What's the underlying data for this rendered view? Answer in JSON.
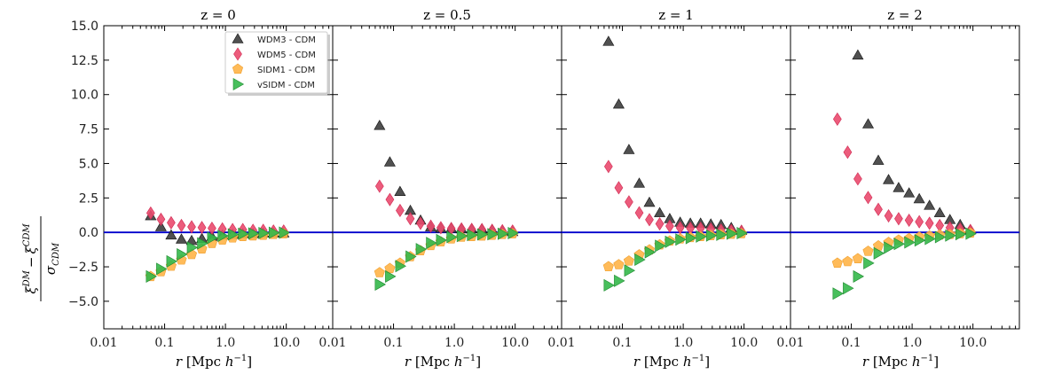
{
  "chart_data": [
    {
      "type": "scatter",
      "title": "z = 0",
      "xlabel": "r [Mpc h^-1]",
      "ylabel": "(ξ^DM − ξ^CDM) / σ_CDM",
      "xscale": "log",
      "xlim": [
        0.01,
        58
      ],
      "ylim": [
        -7,
        15
      ],
      "xticks": [
        "0.01",
        "0.1",
        "1.0",
        "10.0"
      ],
      "yticks": [
        "−5.0",
        "−2.5",
        "0.0",
        "2.5",
        "5.0",
        "7.5",
        "10.0",
        "12.5",
        "15.0"
      ],
      "hline": 0,
      "x": [
        0.059,
        0.087,
        0.128,
        0.189,
        0.278,
        0.41,
        0.6,
        0.89,
        1.31,
        1.93,
        2.84,
        4.18,
        6.16,
        9.07
      ],
      "series": [
        {
          "name": "WDM3 - CDM",
          "values": [
            1.2,
            0.4,
            -0.2,
            -0.5,
            -0.6,
            -0.45,
            -0.3,
            -0.2,
            -0.15,
            -0.1,
            -0.1,
            -0.05,
            -0.05,
            -0.05
          ]
        },
        {
          "name": "WDM5 - CDM",
          "values": [
            1.4,
            0.95,
            0.7,
            0.5,
            0.4,
            0.35,
            0.3,
            0.25,
            0.2,
            0.2,
            0.15,
            0.15,
            0.1,
            0.1
          ]
        },
        {
          "name": "SIDM1 - CDM",
          "values": [
            -3.2,
            -2.85,
            -2.45,
            -2.0,
            -1.6,
            -1.2,
            -0.8,
            -0.55,
            -0.4,
            -0.3,
            -0.25,
            -0.2,
            -0.15,
            -0.1
          ]
        },
        {
          "name": "vSIDM - CDM",
          "values": [
            -3.2,
            -2.65,
            -2.1,
            -1.6,
            -1.1,
            -0.8,
            -0.4,
            -0.25,
            -0.15,
            -0.1,
            -0.08,
            -0.05,
            -0.03,
            -0.02
          ]
        }
      ],
      "legend": "top-right"
    },
    {
      "type": "scatter",
      "title": "z = 0.5",
      "xlabel": "r [Mpc h^-1]",
      "xscale": "log",
      "xlim": [
        0.01,
        58
      ],
      "ylim": [
        -7,
        15
      ],
      "xticks": [
        "0.01",
        "0.1",
        "1.0",
        "10.0"
      ],
      "hline": 0,
      "x": [
        0.059,
        0.087,
        0.128,
        0.189,
        0.278,
        0.41,
        0.6,
        0.89,
        1.31,
        1.93,
        2.84,
        4.18,
        6.16,
        9.07
      ],
      "series": [
        {
          "name": "WDM3 - CDM",
          "values": [
            7.75,
            5.1,
            2.96,
            1.59,
            0.88,
            0.39,
            0.3,
            0.28,
            0.25,
            0.25,
            0.25,
            0.2,
            0.1,
            0.05
          ]
        },
        {
          "name": "WDM5 - CDM",
          "values": [
            3.35,
            2.38,
            1.59,
            0.99,
            0.66,
            0.45,
            0.34,
            0.28,
            0.25,
            0.22,
            0.2,
            0.15,
            0.12,
            0.1
          ]
        },
        {
          "name": "SIDM1 - CDM",
          "values": [
            -2.92,
            -2.62,
            -2.23,
            -1.76,
            -1.33,
            -0.95,
            -0.69,
            -0.47,
            -0.34,
            -0.3,
            -0.26,
            -0.2,
            -0.15,
            -0.1
          ]
        },
        {
          "name": "vSIDM - CDM",
          "values": [
            -3.78,
            -3.2,
            -2.45,
            -1.76,
            -1.22,
            -0.77,
            -0.56,
            -0.34,
            -0.26,
            -0.19,
            -0.15,
            -0.13,
            -0.1,
            -0.05
          ]
        }
      ]
    },
    {
      "type": "scatter",
      "title": "z = 1",
      "xlabel": "r [Mpc h^-1]",
      "xscale": "log",
      "xlim": [
        0.01,
        58
      ],
      "ylim": [
        -7,
        15
      ],
      "xticks": [
        "0.01",
        "0.1",
        "1.0",
        "10.0"
      ],
      "hline": 0,
      "x": [
        0.059,
        0.087,
        0.128,
        0.189,
        0.278,
        0.41,
        0.6,
        0.89,
        1.31,
        1.93,
        2.84,
        4.18,
        6.16,
        9.07
      ],
      "series": [
        {
          "name": "WDM3 - CDM",
          "values": [
            13.85,
            9.3,
            6.0,
            3.56,
            2.17,
            1.42,
            0.99,
            0.73,
            0.66,
            0.66,
            0.6,
            0.56,
            0.34,
            0.14
          ]
        },
        {
          "name": "WDM5 - CDM",
          "values": [
            4.78,
            3.24,
            2.21,
            1.42,
            0.92,
            0.62,
            0.45,
            0.34,
            0.3,
            0.3,
            0.24,
            0.17,
            0.14,
            0.08
          ]
        },
        {
          "name": "SIDM1 - CDM",
          "values": [
            -2.49,
            -2.34,
            -2.08,
            -1.63,
            -1.27,
            -0.9,
            -0.62,
            -0.47,
            -0.37,
            -0.3,
            -0.23,
            -0.17,
            -0.13,
            -0.09
          ]
        },
        {
          "name": "vSIDM - CDM",
          "values": [
            -3.84,
            -3.52,
            -2.77,
            -1.98,
            -1.44,
            -0.98,
            -0.69,
            -0.52,
            -0.41,
            -0.3,
            -0.23,
            -0.17,
            -0.09,
            -0.05
          ]
        }
      ]
    },
    {
      "type": "scatter",
      "title": "z = 2",
      "xlabel": "r [Mpc h^-1]",
      "xscale": "log",
      "xlim": [
        0.01,
        58
      ],
      "ylim": [
        -7,
        15
      ],
      "xticks": [
        "0.01",
        "0.1",
        "1.0",
        "10.0"
      ],
      "hline": 0,
      "x": [
        0.059,
        0.087,
        0.128,
        0.189,
        0.278,
        0.41,
        0.6,
        0.89,
        1.31,
        1.93,
        2.84,
        4.18,
        6.16,
        9.07
      ],
      "series": [
        {
          "name": "WDM3 - CDM",
          "values": [
            null,
            null,
            12.86,
            7.86,
            5.22,
            3.82,
            3.24,
            2.85,
            2.43,
            1.95,
            1.42,
            0.92,
            0.56,
            0.17
          ]
        },
        {
          "name": "WDM5 - CDM",
          "values": [
            8.22,
            5.82,
            3.88,
            2.53,
            1.67,
            1.2,
            0.99,
            0.88,
            0.77,
            0.66,
            0.5,
            0.34,
            0.24,
            0.14
          ]
        },
        {
          "name": "SIDM1 - CDM",
          "values": [
            -2.23,
            -2.12,
            -1.91,
            -1.37,
            -0.98,
            -0.73,
            -0.56,
            -0.45,
            -0.34,
            -0.26,
            -0.19,
            -0.15,
            -0.09,
            -0.05
          ]
        },
        {
          "name": "vSIDM - CDM",
          "values": [
            -4.44,
            -4.06,
            -3.2,
            -2.23,
            -1.52,
            -1.11,
            -0.84,
            -0.73,
            -0.58,
            -0.47,
            -0.34,
            -0.23,
            -0.13,
            -0.09
          ]
        }
      ]
    }
  ],
  "labels": {
    "ylabel_num_a": "ξ",
    "ylabel_num_a_sup": "DM",
    "ylabel_minus": "−",
    "ylabel_num_b": "ξ",
    "ylabel_num_b_sup": "CDM",
    "ylabel_den": "σ",
    "ylabel_den_sub": "CDM",
    "xlabel_r": "r",
    "xlabel_unit": " [Mpc ",
    "xlabel_h": "h",
    "xlabel_exp": "−1",
    "xlabel_close": "]"
  },
  "styles": {
    "series_colors": {
      "WDM3 - CDM": "#3d3d3d",
      "WDM5 - CDM": "#ea4a6e",
      "SIDM1 - CDM": "#ffb447",
      "vSIDM - CDM": "#34b84a"
    },
    "series_markers": {
      "WDM3 - CDM": "triangle-up",
      "WDM5 - CDM": "diamond",
      "SIDM1 - CDM": "pentagon",
      "vSIDM - CDM": "triangle-right"
    },
    "hline_color": "#0000cc"
  }
}
